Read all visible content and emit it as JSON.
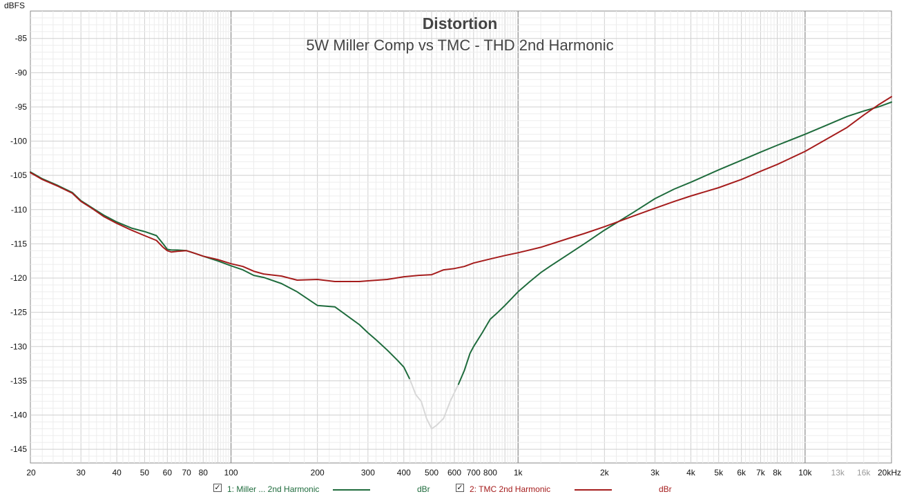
{
  "chart_data": {
    "type": "line",
    "title": "Distortion",
    "subtitle": "5W Miller Comp vs TMC - THD 2nd Harmonic",
    "ylabel": "dBFS",
    "xlabel": "",
    "x_scale": "log",
    "xlim": [
      20,
      20000
    ],
    "ylim": [
      -147,
      -81
    ],
    "grid": true,
    "y_ticks": [
      -85,
      -90,
      -95,
      -100,
      -105,
      -110,
      -115,
      -120,
      -125,
      -130,
      -135,
      -140,
      -145
    ],
    "x_ticks": [
      {
        "value": 20,
        "label": "20"
      },
      {
        "value": 30,
        "label": "30"
      },
      {
        "value": 40,
        "label": "40"
      },
      {
        "value": 50,
        "label": "50"
      },
      {
        "value": 60,
        "label": "60"
      },
      {
        "value": 70,
        "label": "70"
      },
      {
        "value": 80,
        "label": "80"
      },
      {
        "value": 100,
        "label": "100"
      },
      {
        "value": 200,
        "label": "200"
      },
      {
        "value": 300,
        "label": "300"
      },
      {
        "value": 400,
        "label": "400"
      },
      {
        "value": 500,
        "label": "500"
      },
      {
        "value": 600,
        "label": "600"
      },
      {
        "value": 700,
        "label": "700"
      },
      {
        "value": 800,
        "label": "800"
      },
      {
        "value": 1000,
        "label": "1k"
      },
      {
        "value": 2000,
        "label": "2k"
      },
      {
        "value": 3000,
        "label": "3k"
      },
      {
        "value": 4000,
        "label": "4k"
      },
      {
        "value": 5000,
        "label": "5k"
      },
      {
        "value": 6000,
        "label": "6k"
      },
      {
        "value": 7000,
        "label": "7k"
      },
      {
        "value": 8000,
        "label": "8k"
      },
      {
        "value": 10000,
        "label": "10k"
      },
      {
        "value": 13000,
        "label": "13k",
        "muted": true
      },
      {
        "value": 16000,
        "label": "16k",
        "muted": true
      },
      {
        "value": 20000,
        "label": "20kHz"
      }
    ],
    "series": [
      {
        "name": "1: Miller ... 2nd Harmonic",
        "unit": "dBr",
        "color": "#1e6b3c",
        "faded_color": "#d8d8d8",
        "faded_range": [
          420,
          650
        ],
        "x": [
          20,
          22,
          25,
          28,
          30,
          33,
          36,
          40,
          45,
          50,
          55,
          58,
          60,
          62,
          65,
          70,
          75,
          80,
          90,
          100,
          110,
          120,
          130,
          150,
          170,
          200,
          230,
          250,
          280,
          300,
          320,
          350,
          380,
          400,
          420,
          440,
          460,
          480,
          500,
          520,
          550,
          580,
          620,
          650,
          680,
          700,
          750,
          800,
          850,
          900,
          1000,
          1100,
          1200,
          1300,
          1500,
          1700,
          2000,
          2500,
          3000,
          3500,
          4000,
          5000,
          6000,
          7000,
          8000,
          10000,
          12000,
          14000,
          16000,
          18000,
          20000
        ],
        "y": [
          -104.5,
          -105.5,
          -106.5,
          -107.5,
          -108.7,
          -109.8,
          -110.8,
          -111.8,
          -112.7,
          -113.2,
          -113.8,
          -115.0,
          -115.8,
          -115.9,
          -115.9,
          -116.0,
          -116.4,
          -116.8,
          -117.5,
          -118.2,
          -118.8,
          -119.6,
          -119.9,
          -120.8,
          -122.0,
          -124.0,
          -124.2,
          -125.3,
          -126.8,
          -128.0,
          -129.0,
          -130.5,
          -132.0,
          -133.0,
          -134.8,
          -137.0,
          -138.0,
          -140.5,
          -142.0,
          -141.5,
          -140.5,
          -138.0,
          -135.5,
          -133.5,
          -131.0,
          -130.0,
          -128.0,
          -126.0,
          -125.0,
          -124.0,
          -122.0,
          -120.5,
          -119.2,
          -118.2,
          -116.5,
          -115.0,
          -113.0,
          -110.5,
          -108.4,
          -107.0,
          -106.0,
          -104.2,
          -102.8,
          -101.6,
          -100.6,
          -99.0,
          -97.6,
          -96.4,
          -95.6,
          -95.0,
          -94.3
        ]
      },
      {
        "name": "2: TMC 2nd Harmonic",
        "unit": "dBr",
        "color": "#a51c1c",
        "x": [
          20,
          22,
          25,
          28,
          30,
          33,
          36,
          40,
          45,
          50,
          55,
          58,
          60,
          62,
          65,
          70,
          75,
          80,
          90,
          100,
          110,
          120,
          130,
          150,
          170,
          200,
          230,
          250,
          280,
          300,
          350,
          400,
          450,
          500,
          550,
          600,
          650,
          700,
          800,
          900,
          1000,
          1200,
          1500,
          1700,
          2000,
          2500,
          3000,
          3500,
          4000,
          5000,
          6000,
          7000,
          8000,
          10000,
          12000,
          14000,
          16000,
          18000,
          20000
        ],
        "y": [
          -104.6,
          -105.6,
          -106.6,
          -107.6,
          -108.8,
          -109.9,
          -111.0,
          -112.0,
          -113.0,
          -113.8,
          -114.5,
          -115.5,
          -116.0,
          -116.2,
          -116.1,
          -116.0,
          -116.4,
          -116.8,
          -117.3,
          -117.9,
          -118.3,
          -119.0,
          -119.4,
          -119.7,
          -120.3,
          -120.2,
          -120.5,
          -120.5,
          -120.5,
          -120.4,
          -120.2,
          -119.8,
          -119.6,
          -119.5,
          -118.8,
          -118.6,
          -118.3,
          -117.8,
          -117.2,
          -116.7,
          -116.3,
          -115.5,
          -114.2,
          -113.5,
          -112.5,
          -111.0,
          -109.8,
          -108.8,
          -108.0,
          -106.8,
          -105.6,
          -104.4,
          -103.4,
          -101.5,
          -99.6,
          -98.0,
          -96.2,
          -94.7,
          -93.5
        ]
      }
    ]
  }
}
